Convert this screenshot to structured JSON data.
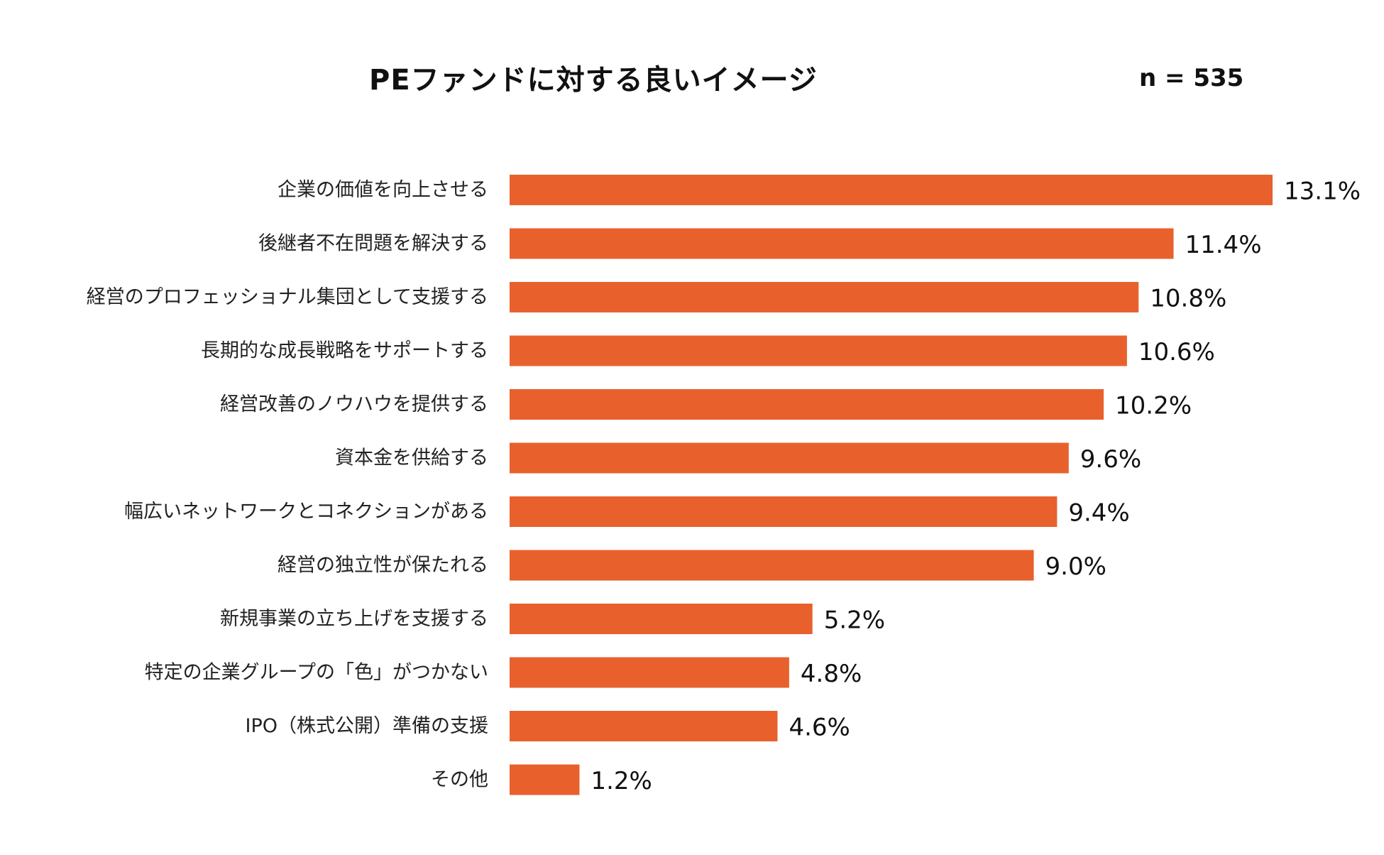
{
  "header": {
    "title": "PEファンドに対する良いイメージ",
    "sample_size": "n = 535"
  },
  "chart_data": {
    "type": "bar",
    "orientation": "horizontal",
    "title": "PEファンドに対する良いイメージ",
    "xlabel": "",
    "ylabel": "",
    "unit": "%",
    "xlim": [
      0,
      13.1
    ],
    "grid": false,
    "bar_color": "#E8612C",
    "categories": [
      "企業の価値を向上させる",
      "後継者不在問題を解決する",
      "経営のプロフェッショナル集団として支援する",
      "長期的な成長戦略をサポートする",
      "経営改善のノウハウを提供する",
      "資本金を供給する",
      "幅広いネットワークとコネクションがある",
      "経営の独立性が保たれる",
      "新規事業の立ち上げを支援する",
      "特定の企業グループの「色」がつかない",
      "IPO（株式公開）準備の支援",
      "その他"
    ],
    "values": [
      13.1,
      11.4,
      10.8,
      10.6,
      10.2,
      9.6,
      9.4,
      9.0,
      5.2,
      4.8,
      4.6,
      1.2
    ],
    "value_labels": [
      "13.1%",
      "11.4%",
      "10.8%",
      "10.6%",
      "10.2%",
      "9.6%",
      "9.4%",
      "9.0%",
      "5.2%",
      "4.8%",
      "4.6%",
      "1.2%"
    ]
  }
}
